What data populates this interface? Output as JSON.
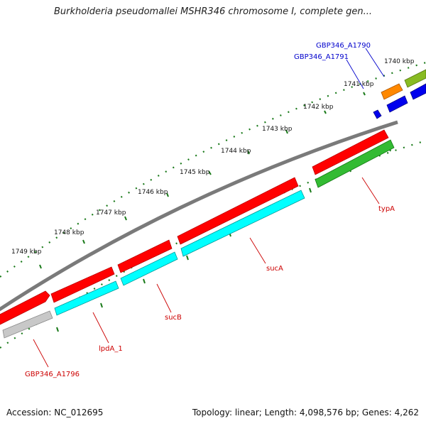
{
  "title": "Burkholderia pseudomallei MSHR346 chromosome I, complete gen...",
  "kbp_labels": [
    "1740 kbp",
    "1741 kbp",
    "1742 kbp",
    "1743 kbp",
    "1744 kbp",
    "1745 kbp",
    "1746 kbp",
    "1747 kbp",
    "1748 kbp",
    "1749 kbp"
  ],
  "gene_labels": [
    {
      "text": "GBP346_A1790",
      "color": "#0000cc"
    },
    {
      "text": "GBP346_A1791",
      "color": "#0000cc"
    },
    {
      "text": "typA",
      "color": "#cc0000"
    },
    {
      "text": "sucA",
      "color": "#cc0000"
    },
    {
      "text": "sucB",
      "color": "#cc0000"
    },
    {
      "text": "lpdA_1",
      "color": "#cc0000"
    },
    {
      "text": "GBP346_A1796",
      "color": "#cc0000"
    }
  ],
  "colors": {
    "red": "#ff0000",
    "cyan": "#00ffff",
    "green": "#33bb33",
    "blue": "#0000ee",
    "orange": "#ff8800",
    "olive": "#88bb22",
    "gray": "#aaaaaa",
    "backbone": "#777777",
    "tick": "#116611"
  },
  "footer": {
    "accession": "Accession: NC_012695",
    "topology": "Topology: linear; Length: 4,098,576 bp; Genes: 4,262"
  }
}
